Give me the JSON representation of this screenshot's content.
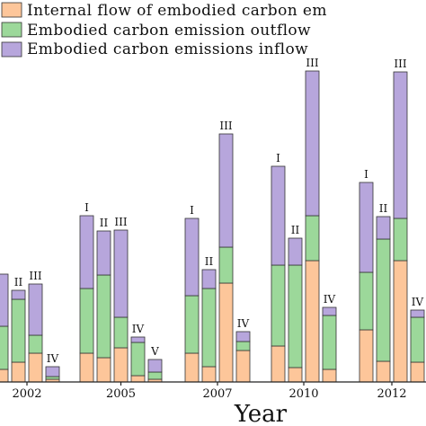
{
  "chart_data": {
    "type": "bar",
    "stacked": true,
    "xlabel": "Year",
    "ylabel": "",
    "legend_position": "top",
    "grid": false,
    "colors": {
      "internal": "#fdc69a",
      "outflow": "#9cd89a",
      "inflow": "#b7a6dc"
    },
    "series_names": {
      "internal": "Internal flow of embodied carbon em",
      "outflow": "Embodied carbon emission outflow",
      "inflow": "Embodied carbon emissions inflow"
    },
    "groups": [
      {
        "year": "2002",
        "bars": [
          {
            "label": "",
            "internal": 14,
            "outflow": 48,
            "inflow": 58
          },
          {
            "label": "II",
            "internal": 22,
            "outflow": 70,
            "inflow": 10
          },
          {
            "label": "III",
            "internal": 32,
            "outflow": 20,
            "inflow": 57
          },
          {
            "label": "IV",
            "internal": 3,
            "outflow": 3,
            "inflow": 11
          }
        ]
      },
      {
        "year": "2005",
        "bars": [
          {
            "label": "I",
            "internal": 32,
            "outflow": 72,
            "inflow": 81
          },
          {
            "label": "II",
            "internal": 27,
            "outflow": 92,
            "inflow": 49
          },
          {
            "label": "III",
            "internal": 38,
            "outflow": 34,
            "inflow": 97
          },
          {
            "label": "IV",
            "internal": 7,
            "outflow": 37,
            "inflow": 6
          },
          {
            "label": "V",
            "internal": 3,
            "outflow": 8,
            "inflow": 14
          }
        ]
      },
      {
        "year": "2007",
        "bars": [
          {
            "label": "I",
            "internal": 32,
            "outflow": 64,
            "inflow": 86
          },
          {
            "label": "II",
            "internal": 17,
            "outflow": 87,
            "inflow": 21
          },
          {
            "label": "III",
            "internal": 110,
            "outflow": 40,
            "inflow": 126
          },
          {
            "label": "IV",
            "internal": 35,
            "outflow": 10,
            "inflow": 11
          }
        ]
      },
      {
        "year": "2010",
        "bars": [
          {
            "label": "I",
            "internal": 40,
            "outflow": 90,
            "inflow": 110
          },
          {
            "label": "II",
            "internal": 16,
            "outflow": 114,
            "inflow": 30
          },
          {
            "label": "III",
            "internal": 135,
            "outflow": 50,
            "inflow": 161
          },
          {
            "label": "IV",
            "internal": 14,
            "outflow": 60,
            "inflow": 9
          }
        ]
      },
      {
        "year": "2012",
        "bars": [
          {
            "label": "I",
            "internal": 58,
            "outflow": 64,
            "inflow": 100
          },
          {
            "label": "II",
            "internal": 23,
            "outflow": 136,
            "inflow": 25
          },
          {
            "label": "III",
            "internal": 135,
            "outflow": 47,
            "inflow": 163
          },
          {
            "label": "IV",
            "internal": 22,
            "outflow": 50,
            "inflow": 8
          }
        ]
      }
    ]
  }
}
